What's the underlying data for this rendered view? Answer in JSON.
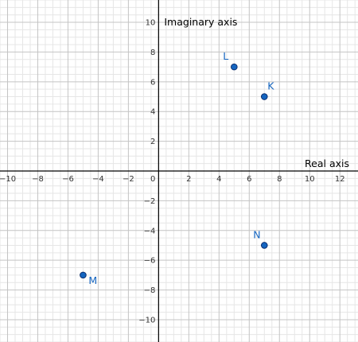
{
  "chart_data": {
    "type": "scatter",
    "title": "",
    "xlabel": "Real axis",
    "ylabel": "Imaginary axis",
    "xlim": [
      -10.5,
      13.2
    ],
    "ylim": [
      -11.5,
      11.5
    ],
    "grid": true,
    "x_ticks": [
      -10,
      -8,
      -6,
      -4,
      -2,
      0,
      2,
      4,
      6,
      8,
      10,
      12
    ],
    "y_ticks": [
      -10,
      -8,
      -6,
      -4,
      -2,
      2,
      4,
      6,
      8,
      10
    ],
    "x_tick_labels": [
      "−10",
      "−8",
      "−6",
      "−4",
      "−2",
      "0",
      "2",
      "4",
      "6",
      "8",
      "10",
      "12"
    ],
    "y_tick_labels": [
      "−10",
      "−8",
      "−6",
      "−4",
      "−2",
      "2",
      "4",
      "6",
      "8",
      "10"
    ],
    "points": [
      {
        "label": "L",
        "x": 5,
        "y": 7,
        "label_pos": "upper-left"
      },
      {
        "label": "K",
        "x": 7,
        "y": 5,
        "label_pos": "upper-right"
      },
      {
        "label": "N",
        "x": 7,
        "y": -5,
        "label_pos": "upper-left"
      },
      {
        "label": "M",
        "x": -5,
        "y": -7,
        "label_pos": "lower-right"
      }
    ],
    "colors": {
      "point_fill": "#1565c0",
      "point_stroke": "#0d2f6e",
      "label": "#1565c0"
    }
  }
}
